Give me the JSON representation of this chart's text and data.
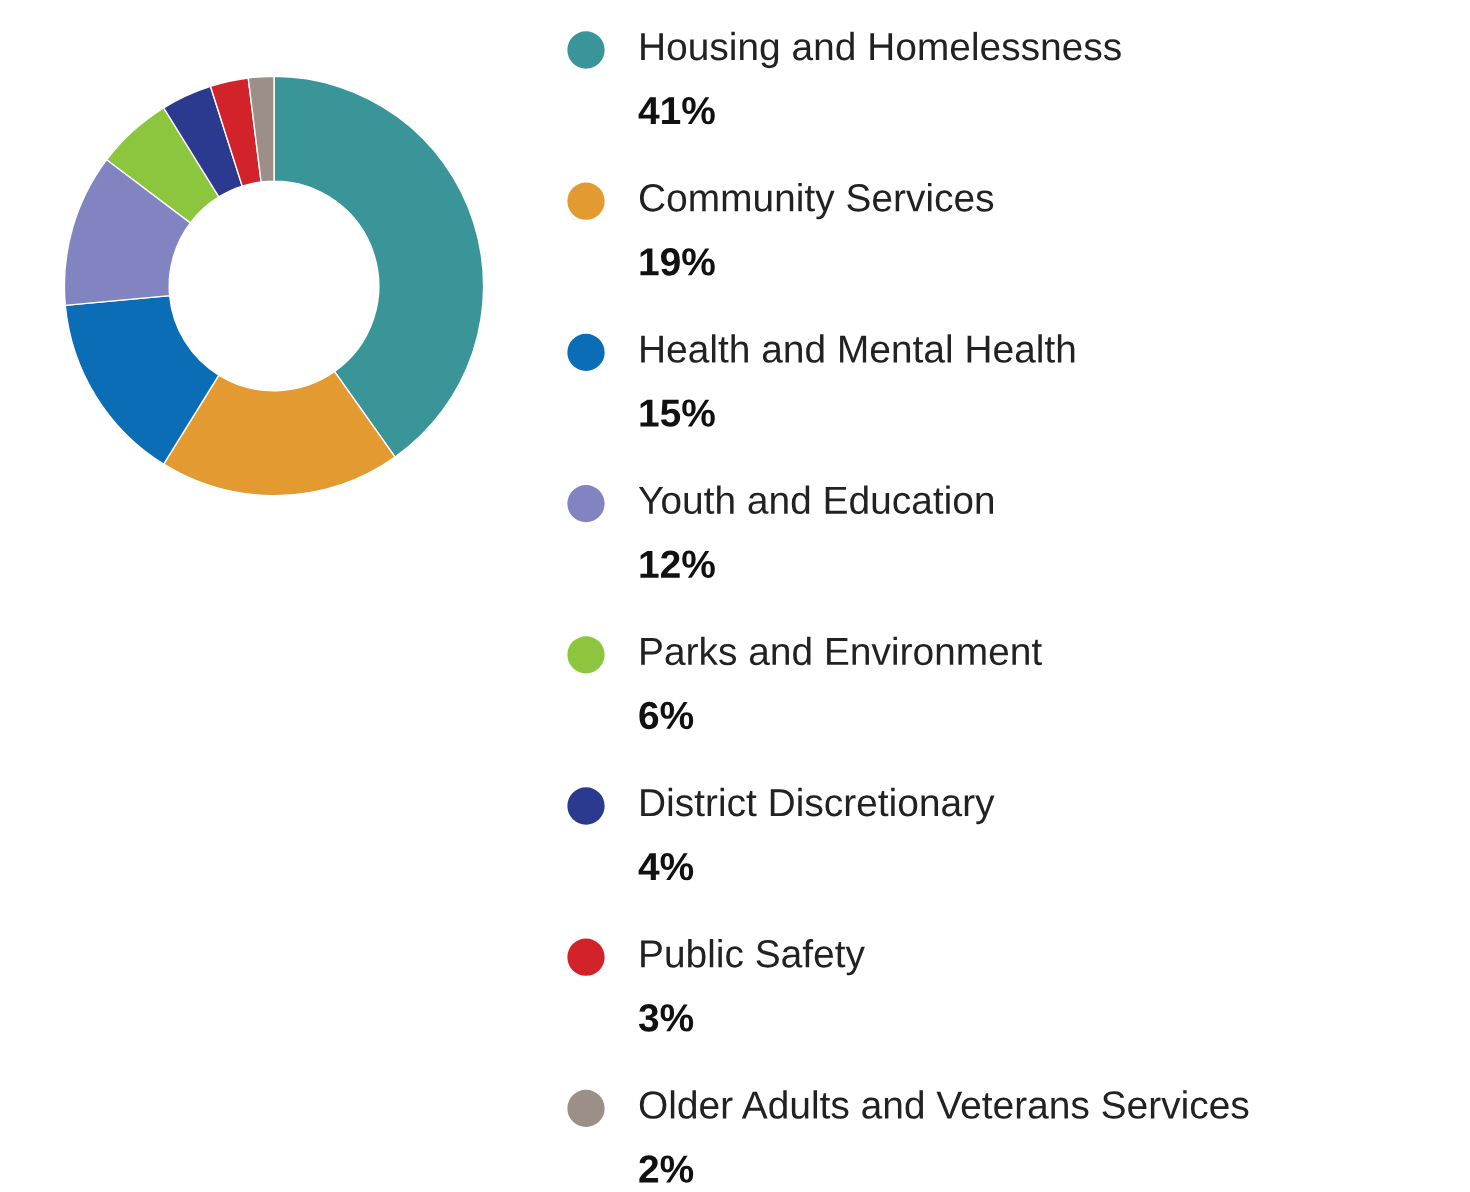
{
  "chart_data": {
    "type": "donut",
    "categories": [
      "Housing and Homelessness",
      "Community Services",
      "Health and Mental Health",
      "Youth and Education",
      "Parks and Environment",
      "District Discretionary",
      "Public Safety",
      "Older Adults and Veterans Services"
    ],
    "values": [
      41,
      19,
      15,
      12,
      6,
      4,
      3,
      2
    ],
    "value_labels": [
      "41%",
      "19%",
      "15%",
      "12%",
      "6%",
      "4%",
      "3%",
      "2%"
    ],
    "colors": [
      "#3a9599",
      "#e39a31",
      "#0a6db5",
      "#8284c2",
      "#8cc63f",
      "#2b3a8e",
      "#d2232a",
      "#9b8f88"
    ],
    "legend": "right"
  }
}
